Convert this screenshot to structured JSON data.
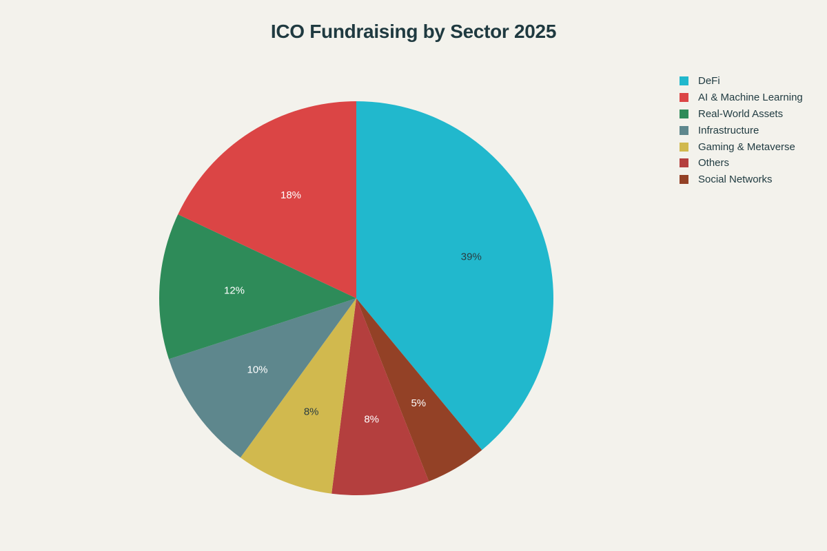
{
  "chart_data": {
    "type": "pie",
    "title": "ICO Fundraising by Sector 2025",
    "legend_position": "top-right",
    "direction": "clockwise",
    "start_angle": "12 o'clock",
    "slices": [
      {
        "name": "DeFi",
        "value": 39,
        "label": "39%",
        "color": "#21b8cd",
        "label_color": "#2a3c40"
      },
      {
        "name": "Social Networks",
        "value": 5,
        "label": "5%",
        "color": "#934126",
        "label_color": "#ffffff"
      },
      {
        "name": "Others",
        "value": 8,
        "label": "8%",
        "color": "#b43f3e",
        "label_color": "#ffffff"
      },
      {
        "name": "Gaming & Metaverse",
        "value": 8,
        "label": "8%",
        "color": "#d1b94e",
        "label_color": "#2a3c40"
      },
      {
        "name": "Infrastructure",
        "value": 10,
        "label": "10%",
        "color": "#5e878d",
        "label_color": "#ffffff"
      },
      {
        "name": "Real-World Assets",
        "value": 12,
        "label": "12%",
        "color": "#2e8b59",
        "label_color": "#ffffff"
      },
      {
        "name": "AI & Machine Learning",
        "value": 18,
        "label": "18%",
        "color": "#db4545",
        "label_color": "#ffffff"
      }
    ],
    "legend": [
      {
        "name": "DeFi",
        "color": "#21b8cd"
      },
      {
        "name": "AI & Machine Learning",
        "color": "#db4545"
      },
      {
        "name": "Real-World Assets",
        "color": "#2e8b59"
      },
      {
        "name": "Infrastructure",
        "color": "#5e878d"
      },
      {
        "name": "Gaming & Metaverse",
        "color": "#d1b94e"
      },
      {
        "name": "Others",
        "color": "#b43f3e"
      },
      {
        "name": "Social Networks",
        "color": "#934126"
      }
    ]
  }
}
